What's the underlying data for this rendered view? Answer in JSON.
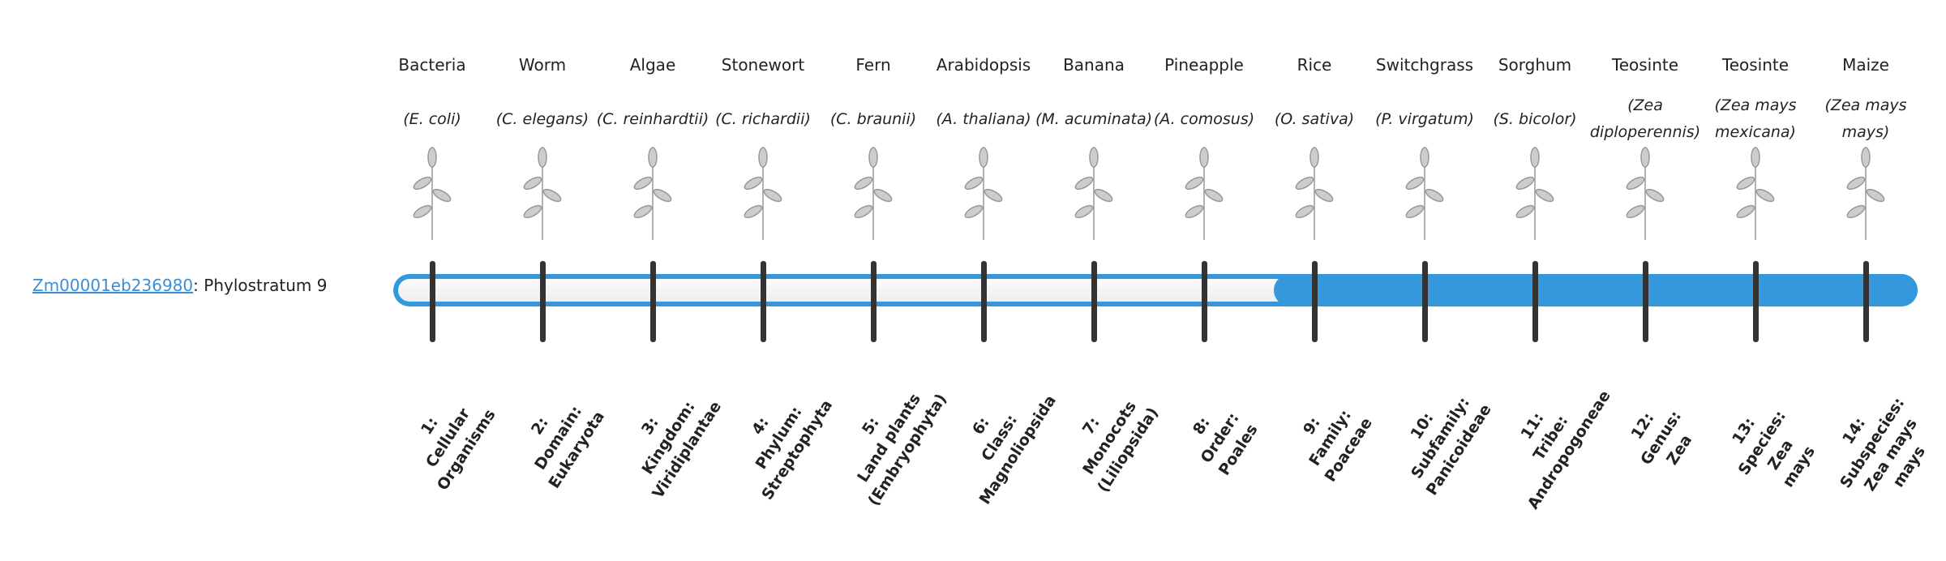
{
  "gene": {
    "id": "Zm00001eb236980",
    "suffix": ": Phylostratum 9"
  },
  "phylostratum": {
    "current": 9,
    "total": 14
  },
  "colors": {
    "accent": "#3597dc",
    "tick": "#333333",
    "link": "#3a8fd8"
  },
  "stages": [
    {
      "common": "Bacteria",
      "latin": "(E. coli)",
      "rank": "1:\nCellular\nOrganisms",
      "icon": "bacteria-illustration"
    },
    {
      "common": "Worm",
      "latin": "(C. elegans)",
      "rank": "2:\nDomain:\nEukaryota",
      "icon": "worm-illustration"
    },
    {
      "common": "Algae",
      "latin": "(C. reinhardtii)",
      "rank": "3:\nKingdom:\nViridiplantae",
      "icon": "algae-illustration"
    },
    {
      "common": "Stonewort",
      "latin": "(C. richardii)",
      "rank": "4:\nPhylum:\nStreptophyta",
      "icon": "stonewort-illustration"
    },
    {
      "common": "Fern",
      "latin": "(C. braunii)",
      "rank": "5:\nLand plants\n(Embryophyta)",
      "icon": "fern-illustration"
    },
    {
      "common": "Arabidopsis",
      "latin": "(A. thaliana)",
      "rank": "6:\nClass:\nMagnoliopsida",
      "icon": "arabidopsis-illustration"
    },
    {
      "common": "Banana",
      "latin": "(M. acuminata)",
      "rank": "7:\nMonocots\n(Liliopsida)",
      "icon": "banana-illustration"
    },
    {
      "common": "Pineapple",
      "latin": "(A. comosus)",
      "rank": "8:\nOrder:\nPoales",
      "icon": "pineapple-illustration"
    },
    {
      "common": "Rice",
      "latin": "(O. sativa)",
      "rank": "9:\nFamily:\nPoaceae",
      "icon": "rice-illustration"
    },
    {
      "common": "Switchgrass",
      "latin": "(P. virgatum)",
      "rank": "10:\nSubfamily:\nPanicoideae",
      "icon": "switchgrass-illustration"
    },
    {
      "common": "Sorghum",
      "latin": "(S. bicolor)",
      "rank": "11:\nTribe:\nAndropogoneae",
      "icon": "sorghum-illustration"
    },
    {
      "common": "Teosinte",
      "latin": "(Zea diploperennis)",
      "rank": "12:\nGenus:\nZea",
      "icon": "teosinte-illustration"
    },
    {
      "common": "Teosinte",
      "latin": "(Zea mays mexicana)",
      "rank": "13:\nSpecies:\nZea\nmays",
      "icon": "teosinte-mexicana-illustration"
    },
    {
      "common": "Maize",
      "latin": "(Zea mays mays)",
      "rank": "14:\nSubspecies:\nZea mays\nmays",
      "icon": "maize-illustration"
    }
  ]
}
